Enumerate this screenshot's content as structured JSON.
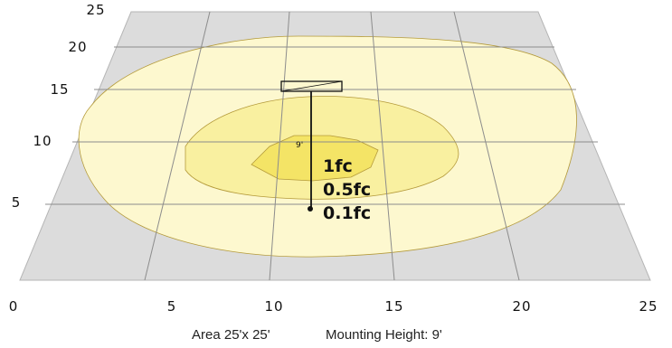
{
  "x_ticks": [
    "0",
    "5",
    "10",
    "15",
    "20",
    "25"
  ],
  "y_ticks": [
    "5",
    "10",
    "15",
    "20",
    "25"
  ],
  "levels": [
    "1fc",
    "0.5fc",
    "0.1fc"
  ],
  "height_marker": "9'",
  "caption": {
    "area": "Area 25'x 25'",
    "mounting": "Mounting Height: 9'"
  },
  "colors": {
    "floor": "#dcdcdc",
    "contour_low": "#fdf8cf",
    "contour_mid": "#f9f0a0",
    "contour_high": "#f4e466",
    "grid": "#8c8c8c"
  }
}
